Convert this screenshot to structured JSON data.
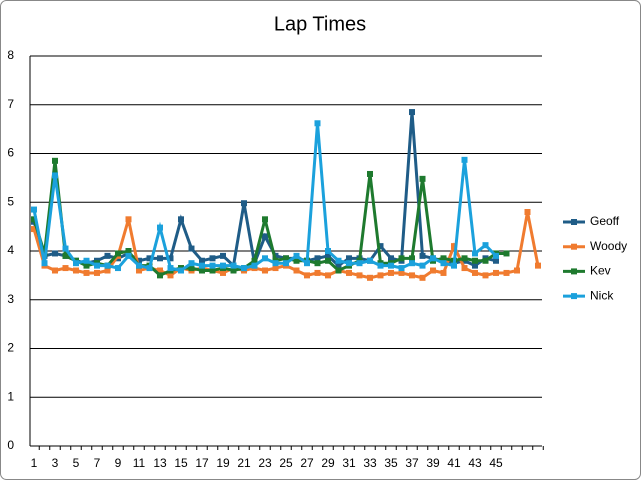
{
  "chart_data": {
    "type": "line",
    "title": "Lap Times",
    "categories": [
      "1",
      null,
      "3",
      null,
      "5",
      null,
      "7",
      null,
      "9",
      null,
      "11",
      null,
      "13",
      null,
      "15",
      null,
      "17",
      null,
      "19",
      null,
      "21",
      null,
      "23",
      null,
      "25",
      null,
      "27",
      null,
      "29",
      null,
      "31",
      null,
      "33",
      null,
      "35",
      null,
      "37",
      null,
      "39",
      null,
      "41",
      null,
      "43",
      null,
      "45",
      null,
      null,
      null,
      null
    ],
    "ylim": [
      0,
      8
    ],
    "yticks": [
      0,
      1,
      2,
      3,
      4,
      5,
      6,
      7,
      8
    ],
    "grid": true,
    "legend": "right",
    "series": [
      {
        "name": "Geoff",
        "color": "#1f5c87",
        "values": [
          4.6,
          3.9,
          3.95,
          3.9,
          3.8,
          3.75,
          3.8,
          3.9,
          3.85,
          3.95,
          3.8,
          3.85,
          3.85,
          3.85,
          4.65,
          4.05,
          3.8,
          3.85,
          3.9,
          3.7,
          4.98,
          3.75,
          4.3,
          3.9,
          3.85,
          3.85,
          3.8,
          3.85,
          3.9,
          3.7,
          3.85,
          3.85,
          3.8,
          4.1,
          3.85,
          3.8,
          6.85,
          3.9,
          3.85,
          3.8,
          3.75,
          3.8,
          3.7,
          3.85,
          3.8,
          null,
          null,
          null,
          null
        ]
      },
      {
        "name": "Woody",
        "color": "#f07b2f",
        "values": [
          4.45,
          3.7,
          3.6,
          3.65,
          3.6,
          3.55,
          3.55,
          3.6,
          3.9,
          4.65,
          3.6,
          3.65,
          3.6,
          3.5,
          3.65,
          3.6,
          3.65,
          3.6,
          3.55,
          3.65,
          3.6,
          3.65,
          3.6,
          3.65,
          3.7,
          3.6,
          3.5,
          3.55,
          3.5,
          3.6,
          3.55,
          3.5,
          3.45,
          3.5,
          3.55,
          3.55,
          3.5,
          3.45,
          3.6,
          3.55,
          4.1,
          3.65,
          3.55,
          3.5,
          3.55,
          3.55,
          3.6,
          4.8,
          3.7
        ]
      },
      {
        "name": "Kev",
        "color": "#1e7a2e",
        "values": [
          4.65,
          3.95,
          5.85,
          3.9,
          3.8,
          3.7,
          3.75,
          3.7,
          3.95,
          4.0,
          3.7,
          3.7,
          3.5,
          3.6,
          3.65,
          3.65,
          3.6,
          3.6,
          3.65,
          3.6,
          3.65,
          3.8,
          4.65,
          3.8,
          3.85,
          3.8,
          3.8,
          3.75,
          3.8,
          3.6,
          3.7,
          3.8,
          5.58,
          3.75,
          3.75,
          3.85,
          3.85,
          5.48,
          3.8,
          3.85,
          3.8,
          3.85,
          3.8,
          3.8,
          3.95,
          3.95,
          null,
          null,
          null
        ]
      },
      {
        "name": "Nick",
        "color": "#1ba1dc",
        "values": [
          4.85,
          3.75,
          5.55,
          4.05,
          3.75,
          3.8,
          3.7,
          3.7,
          3.65,
          3.9,
          3.7,
          3.65,
          4.48,
          3.65,
          3.6,
          3.75,
          3.7,
          3.7,
          3.7,
          3.7,
          3.65,
          3.7,
          3.85,
          3.75,
          3.75,
          3.9,
          3.75,
          6.62,
          4.0,
          3.8,
          3.75,
          3.75,
          3.8,
          3.7,
          3.7,
          3.65,
          3.75,
          3.7,
          3.85,
          3.75,
          3.7,
          5.87,
          3.95,
          4.12,
          3.9,
          null,
          null,
          null,
          null
        ]
      }
    ]
  }
}
